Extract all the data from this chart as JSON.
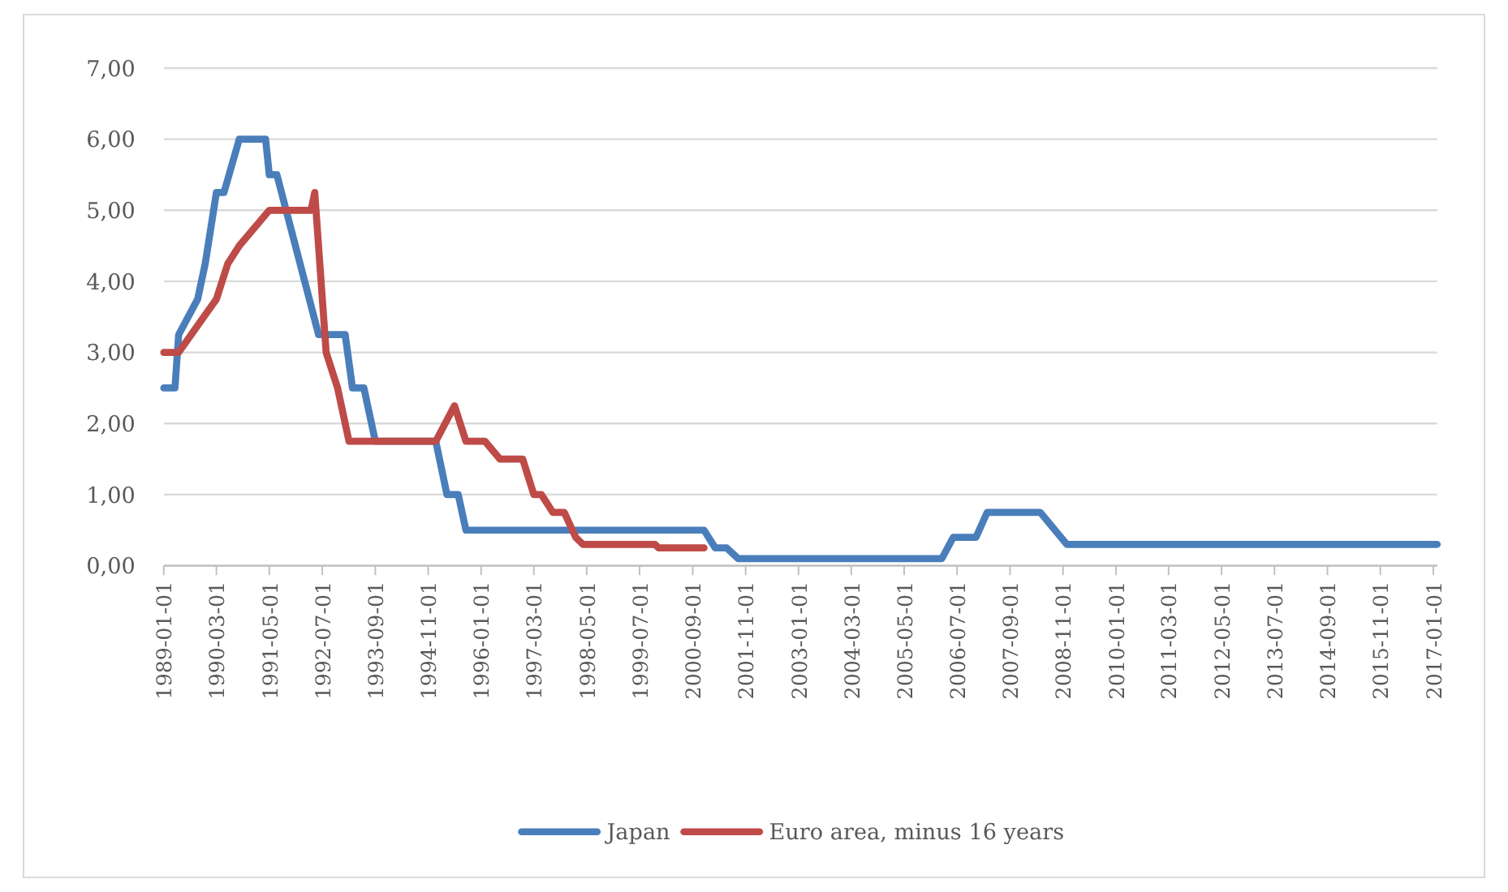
{
  "chart_data": {
    "type": "line",
    "xlim": [
      "1989-01-01",
      "2017-02-01"
    ],
    "ylim": [
      0,
      7
    ],
    "yticks": [
      {
        "value": 0,
        "label": "0,00"
      },
      {
        "value": 1,
        "label": "1,00"
      },
      {
        "value": 2,
        "label": "2,00"
      },
      {
        "value": 3,
        "label": "3,00"
      },
      {
        "value": 4,
        "label": "4,00"
      },
      {
        "value": 5,
        "label": "5,00"
      },
      {
        "value": 6,
        "label": "6,00"
      },
      {
        "value": 7,
        "label": "7,00"
      }
    ],
    "xticks": [
      "1989-01-01",
      "1990-03-01",
      "1991-05-01",
      "1992-07-01",
      "1993-09-01",
      "1994-11-01",
      "1996-01-01",
      "1997-03-01",
      "1998-05-01",
      "1999-07-01",
      "2000-09-01",
      "2001-11-01",
      "2003-01-01",
      "2004-03-01",
      "2005-05-01",
      "2006-07-01",
      "2007-09-01",
      "2008-11-01",
      "2010-01-01",
      "2011-03-01",
      "2012-05-01",
      "2013-07-01",
      "2014-09-01",
      "2015-11-01",
      "2017-01-01"
    ],
    "grid": "y",
    "legend": "bottom",
    "line_style": "solid",
    "marker": "none",
    "series": [
      {
        "name": "Japan",
        "color": "#4a7ebb",
        "x": [
          "1989-01",
          "1989-04",
          "1989-05",
          "1989-10",
          "1989-12",
          "1990-03",
          "1990-05",
          "1990-09",
          "1991-04",
          "1991-05",
          "1991-07",
          "1992-06",
          "1993-01",
          "1993-03",
          "1993-06",
          "1993-09",
          "1995-01",
          "1995-04",
          "1995-07",
          "1995-09",
          "2000-12",
          "2001-03",
          "2001-06",
          "2001-09",
          "2006-03",
          "2006-06",
          "2006-12",
          "2007-03",
          "2008-05",
          "2008-12",
          "2017-02"
        ],
        "values": [
          2.5,
          2.5,
          3.25,
          3.75,
          4.25,
          5.25,
          5.25,
          6.0,
          6.0,
          5.5,
          5.5,
          3.25,
          3.25,
          2.5,
          2.5,
          1.75,
          1.75,
          1.0,
          1.0,
          0.5,
          0.5,
          0.25,
          0.25,
          0.1,
          0.1,
          0.4,
          0.4,
          0.75,
          0.75,
          0.3,
          0.3
        ]
      },
      {
        "name": "Euro area, minus 16 years",
        "color": "#be4b48",
        "x": [
          "1989-01",
          "1989-05",
          "1990-03",
          "1990-06",
          "1990-09",
          "1991-05",
          "1992-04",
          "1992-05",
          "1992-08",
          "1992-11",
          "1993-02",
          "1995-01",
          "1995-06",
          "1995-09",
          "1996-02",
          "1996-06",
          "1996-12",
          "1997-03",
          "1997-05",
          "1997-08",
          "1997-11",
          "1998-02",
          "1998-04",
          "1999-11",
          "1999-12",
          "2000-12"
        ],
        "values": [
          3.0,
          3.0,
          3.75,
          4.25,
          4.5,
          5.0,
          5.0,
          5.25,
          3.0,
          2.5,
          1.75,
          1.75,
          2.25,
          1.75,
          1.75,
          1.5,
          1.5,
          1.0,
          1.0,
          0.75,
          0.75,
          0.4,
          0.3,
          0.3,
          0.25,
          0.25
        ]
      }
    ]
  }
}
